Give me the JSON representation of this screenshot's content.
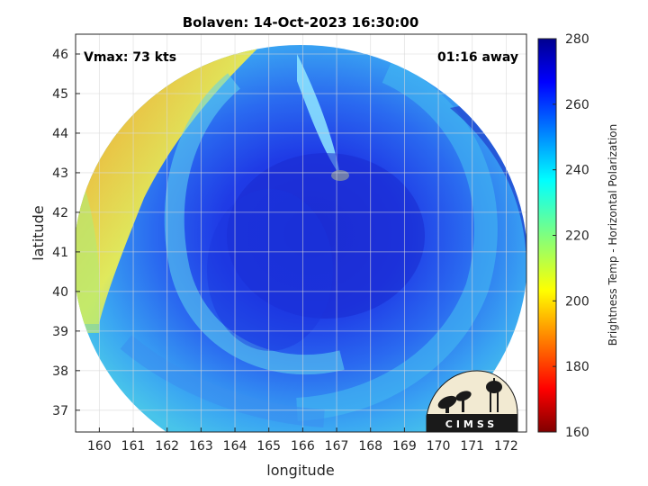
{
  "title": "Bolaven: 14-Oct-2023 16:30:00",
  "annotations": {
    "vmax": "Vmax: 73 kts",
    "time_away": "01:16 away"
  },
  "axes": {
    "xlabel": "longitude",
    "ylabel": "latitude",
    "xticks": [
      160,
      161,
      162,
      163,
      164,
      165,
      166,
      167,
      168,
      169,
      170,
      171,
      172
    ],
    "yticks": [
      37,
      38,
      39,
      40,
      41,
      42,
      43,
      44,
      45,
      46
    ],
    "xlim": [
      159.3,
      172.6
    ],
    "ylim": [
      36.45,
      46.5
    ],
    "grid": true
  },
  "colorbar": {
    "label": "Brightness Temp - Horizontal Polarization",
    "ticks": [
      160,
      180,
      200,
      220,
      240,
      260,
      280
    ],
    "range": [
      160,
      280
    ],
    "colormap": "jet"
  },
  "logo": {
    "text": "CIMSS"
  },
  "colors": {
    "frame": "#262626",
    "grid": "#d9d9d9",
    "logo_bg": "#f2ead2",
    "logo_band": "#1a1a1a"
  }
}
